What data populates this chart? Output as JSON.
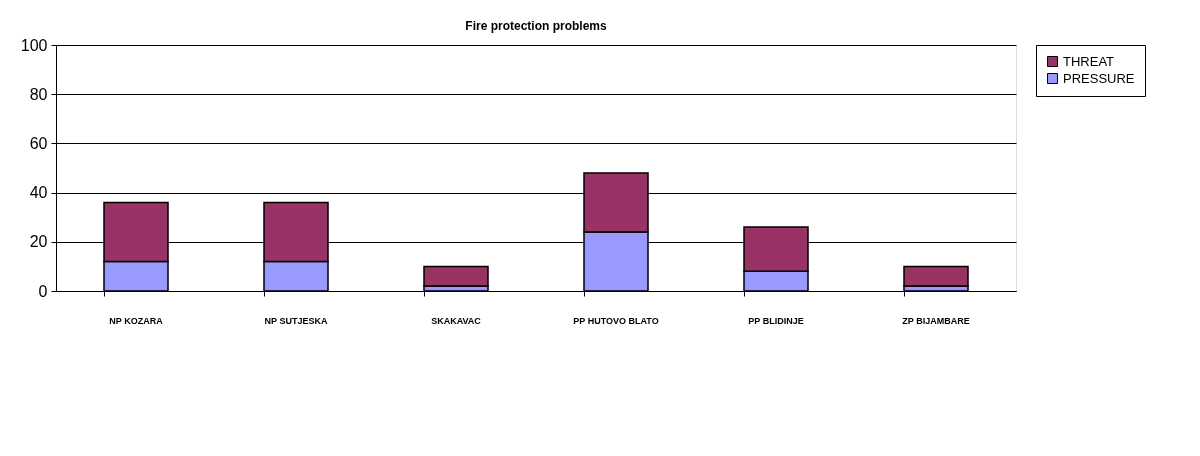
{
  "chart_data": {
    "type": "bar",
    "title": "Fire protection problems",
    "stacked": true,
    "categories": [
      "NP KOZARA",
      "NP SUTJESKA",
      "SKAKAVAC",
      "PP HUTOVO BLATO",
      "PP BLIDINJE",
      "ZP BIJAMBARE"
    ],
    "series": [
      {
        "name": "PRESSURE",
        "color": "#9999ff",
        "values": [
          12,
          12,
          2,
          24,
          8,
          2
        ]
      },
      {
        "name": "THREAT",
        "color": "#993366",
        "values": [
          24,
          24,
          8,
          24,
          18,
          8
        ]
      }
    ],
    "ylim": [
      0,
      100
    ],
    "yticks": [
      0,
      20,
      40,
      60,
      80,
      100
    ],
    "grid": "y",
    "legend": "right"
  }
}
